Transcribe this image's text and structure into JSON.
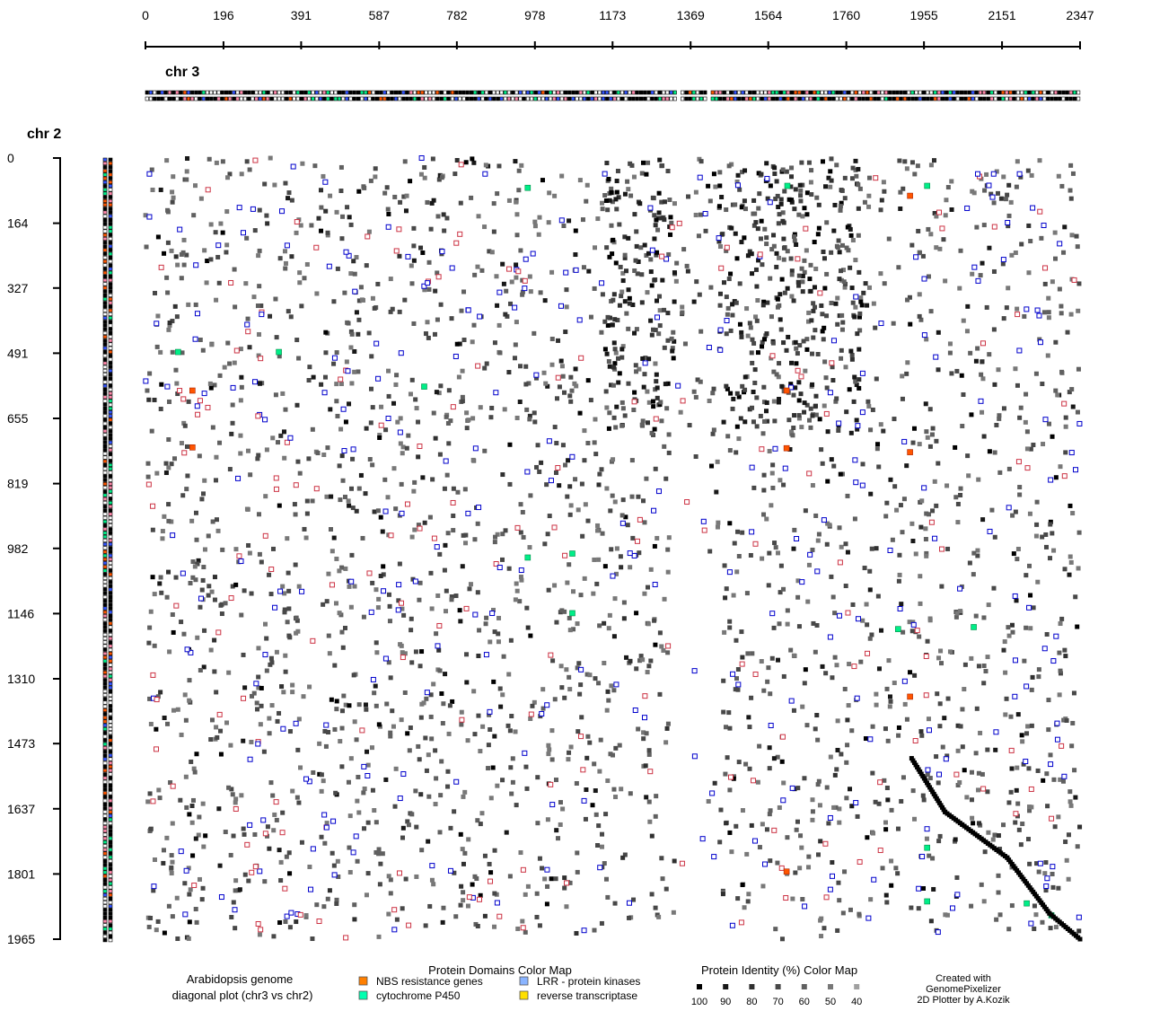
{
  "chart_data": {
    "type": "scatter",
    "x_axis": {
      "label": "chr 3",
      "ticks": [
        0,
        196,
        391,
        587,
        782,
        978,
        1173,
        1369,
        1564,
        1760,
        1955,
        2151,
        2347
      ],
      "range": [
        0,
        2347
      ]
    },
    "y_axis": {
      "label": "chr 2",
      "ticks": [
        0,
        164,
        327,
        491,
        655,
        819,
        982,
        1146,
        1310,
        1473,
        1637,
        1801,
        1965
      ],
      "range": [
        0,
        1965
      ],
      "inverted": true
    },
    "diagonal_segments": [
      {
        "name": "",
        "x": [
          1924,
          2008,
          2164,
          2270,
          2347
        ],
        "y": [
          1510,
          1645,
          1760,
          1900,
          1965
        ]
      }
    ],
    "highlighted_points": {
      "nbs": [
        [
          118,
          585
        ],
        [
          118,
          728
        ],
        [
          1610,
          585
        ],
        [
          1610,
          730
        ],
        [
          1920,
          95
        ],
        [
          1920,
          740
        ],
        [
          1920,
          1355
        ],
        [
          1610,
          1795
        ]
      ],
      "p450": [
        [
          82,
          488
        ],
        [
          335,
          488
        ],
        [
          700,
          575
        ],
        [
          960,
          75
        ],
        [
          960,
          1005
        ],
        [
          1072,
          995
        ],
        [
          1612,
          70
        ],
        [
          1963,
          70
        ],
        [
          1072,
          1145
        ],
        [
          1890,
          1185
        ],
        [
          2080,
          1180
        ],
        [
          1963,
          1735
        ],
        [
          1963,
          1870
        ],
        [
          2213,
          1875
        ],
        [
          2275,
          1905
        ]
      ],
      "lrr": [
        [
          10,
          40
        ],
        [
          10,
          148
        ],
        [
          55,
          575
        ],
        [
          148,
          592
        ],
        [
          220,
          578
        ],
        [
          300,
          658
        ],
        [
          450,
          590
        ],
        [
          610,
          655
        ],
        [
          640,
          690
        ],
        [
          853,
          40
        ],
        [
          880,
          590
        ],
        [
          890,
          1030
        ],
        [
          1720,
          590
        ],
        [
          1720,
          1205
        ],
        [
          2090,
          40
        ],
        [
          2130,
          40
        ],
        [
          2195,
          40
        ],
        [
          1720,
          1660
        ],
        [
          1720,
          1840
        ]
      ],
      "retro": []
    },
    "legend": {
      "domains_title": "Protein Domains Color Map",
      "domains": [
        {
          "label": "NBS resistance genes",
          "color": "#ff7f00"
        },
        {
          "label": "LRR - protein kinases",
          "color": "#8ab4ff"
        },
        {
          "label": "cytochrome P450",
          "color": "#00ffb0"
        },
        {
          "label": "reverse transcriptase",
          "color": "#ffe000"
        }
      ],
      "identity_title": "Protein Identity (%) Color Map",
      "identity": [
        {
          "label": "100",
          "color": "#000000"
        },
        {
          "label": "90",
          "color": "#181818"
        },
        {
          "label": "80",
          "color": "#303030"
        },
        {
          "label": "70",
          "color": "#484848"
        },
        {
          "label": "60",
          "color": "#606060"
        },
        {
          "label": "50",
          "color": "#787878"
        },
        {
          "label": "40",
          "color": "#a0a0a0"
        }
      ]
    },
    "grid": false
  },
  "caption": {
    "line1": "Arabidopsis genome",
    "line2": "diagonal plot (chr3 vs chr2)"
  },
  "credit": {
    "line1": "Created with",
    "line2": "GenomePixelizer",
    "line3": "2D Plotter by A.Kozik"
  },
  "colors": {
    "axis": "#000000",
    "lrr_box": "#0000cc",
    "pink_box": "#cc3344",
    "nbs": "#ff5500",
    "p450": "#00ee88"
  }
}
